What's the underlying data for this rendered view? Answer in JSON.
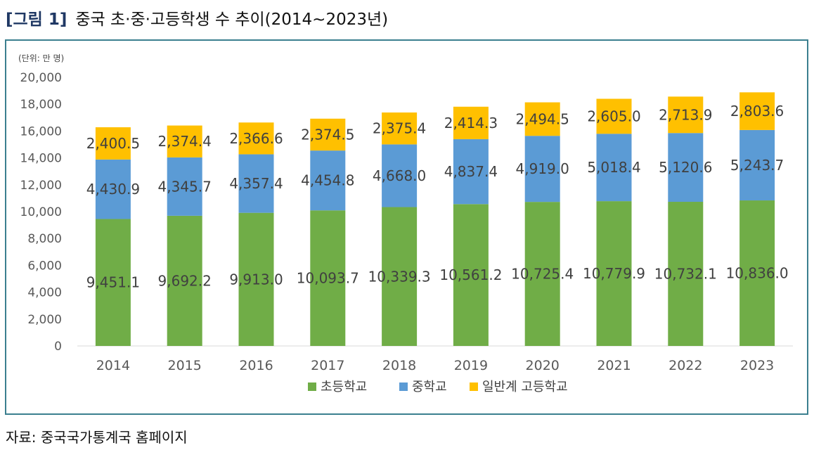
{
  "header": {
    "fig_number": "[그림 1]",
    "title": "중국 초·중·고등학생 수 추이(2014~2023년)"
  },
  "unit_note": "(단위: 만 명)",
  "source": "자료: 중국국가통계국 홈페이지",
  "chart_data": {
    "type": "bar",
    "stacked": true,
    "categories": [
      "2014",
      "2015",
      "2016",
      "2017",
      "2018",
      "2019",
      "2020",
      "2021",
      "2022",
      "2023"
    ],
    "series": [
      {
        "name": "초등학교",
        "color": "#70ad47",
        "values": [
          9451.1,
          9692.2,
          9913.0,
          10093.7,
          10339.3,
          10561.2,
          10725.4,
          10779.9,
          10732.1,
          10836.0
        ],
        "labels": [
          "9,451.1",
          "9,692.2",
          "9,913.0",
          "10,093.7",
          "10,339.3",
          "10,561.2",
          "10,725.4",
          "10,779.9",
          "10,732.1",
          "10,836.0"
        ]
      },
      {
        "name": "중학교",
        "color": "#5b9bd5",
        "values": [
          4430.9,
          4345.7,
          4357.4,
          4454.8,
          4668.0,
          4837.4,
          4919.0,
          5018.4,
          5120.6,
          5243.7
        ],
        "labels": [
          "4,430.9",
          "4,345.7",
          "4,357.4",
          "4,454.8",
          "4,668.0",
          "4,837.4",
          "4,919.0",
          "5,018.4",
          "5,120.6",
          "5,243.7"
        ]
      },
      {
        "name": "일반계 고등학교",
        "color": "#ffc000",
        "values": [
          2400.5,
          2374.4,
          2366.6,
          2374.5,
          2375.4,
          2414.3,
          2494.5,
          2605.0,
          2713.9,
          2803.6
        ],
        "labels": [
          "2,400.5",
          "2,374.4",
          "2,366.6",
          "2,374.5",
          "2,375.4",
          "2,414.3",
          "2,494.5",
          "2,605.0",
          "2,713.9",
          "2,803.6"
        ]
      }
    ],
    "ylim": [
      0,
      20000
    ],
    "yticks": [
      "0",
      "2,000",
      "4,000",
      "6,000",
      "8,000",
      "10,000",
      "12,000",
      "14,000",
      "16,000",
      "18,000",
      "20,000"
    ],
    "legend_position": "bottom",
    "grid": false
  }
}
